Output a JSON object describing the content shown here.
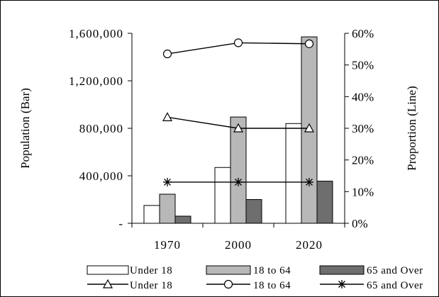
{
  "chart_data": {
    "type": "bar+line",
    "categories": [
      "1970",
      "2000",
      "2020"
    ],
    "bar_series": [
      {
        "name": "Under 18",
        "values": [
          150000,
          470000,
          840000
        ],
        "color": "#ffffff"
      },
      {
        "name": "18 to 64",
        "values": [
          245000,
          895000,
          1570000
        ],
        "color": "#b8b8b8"
      },
      {
        "name": "65 and Over",
        "values": [
          60000,
          200000,
          355000
        ],
        "color": "#6e6e6e"
      }
    ],
    "line_series": [
      {
        "name": "Under 18",
        "marker": "triangle",
        "values": [
          0.335,
          0.3,
          0.3
        ]
      },
      {
        "name": "18 to 64",
        "marker": "circle",
        "values": [
          0.535,
          0.57,
          0.567
        ]
      },
      {
        "name": "65 and Over",
        "marker": "star",
        "values": [
          0.13,
          0.13,
          0.13
        ]
      }
    ],
    "ylabel_left": "Population (Bar)",
    "ylabel_right": "Proportion (Line)",
    "y_left_range": [
      0,
      1600000
    ],
    "y_right_range": [
      0,
      0.6
    ],
    "y_left_ticks": [
      "-",
      "400,000",
      "800,000",
      "1,200,000",
      "1,600,000"
    ],
    "y_right_ticks": [
      "0%",
      "10%",
      "20%",
      "30%",
      "40%",
      "50%",
      "60%"
    ],
    "grid": false,
    "legend_position": "bottom"
  }
}
